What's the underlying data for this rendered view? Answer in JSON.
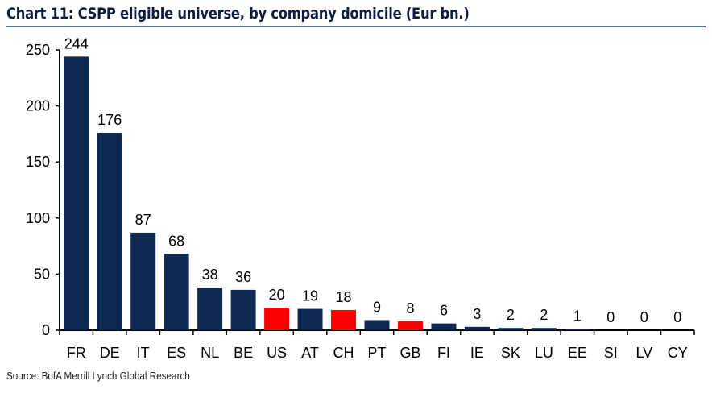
{
  "chart_data": {
    "type": "bar",
    "title": "Chart 11: CSPP eligible universe, by company domicile (Eur bn.)",
    "source": "Source: BofA Merrill Lynch Global Research",
    "categories": [
      "FR",
      "DE",
      "IT",
      "ES",
      "NL",
      "BE",
      "US",
      "AT",
      "CH",
      "PT",
      "GB",
      "FI",
      "IE",
      "SK",
      "LU",
      "EE",
      "SI",
      "LV",
      "CY"
    ],
    "values": [
      244,
      176,
      87,
      68,
      38,
      36,
      20,
      19,
      18,
      9,
      8,
      6,
      3,
      2,
      2,
      1,
      0,
      0,
      0
    ],
    "highlighted": [
      "US",
      "CH",
      "GB"
    ],
    "colors": {
      "default": "#0e2a52",
      "highlight": "#ff0000"
    },
    "ylim": [
      0,
      250
    ],
    "yticks": [
      0,
      50,
      100,
      150,
      200,
      250
    ],
    "xlabel": "",
    "ylabel": "",
    "grid": false
  }
}
